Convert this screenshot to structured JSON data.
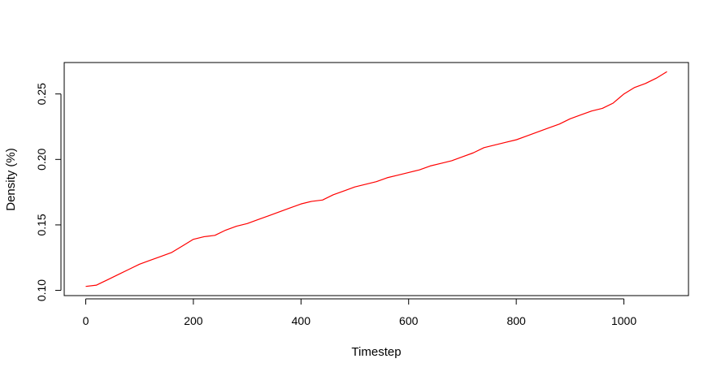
{
  "chart_data": {
    "type": "line",
    "title": "",
    "xlabel": "Timestep",
    "ylabel": "Density (%)",
    "xlim": [
      -40,
      1120
    ],
    "ylim": [
      0.096,
      0.274
    ],
    "x_ticks": [
      0,
      200,
      400,
      600,
      800,
      1000
    ],
    "x_tick_labels": [
      "0",
      "200",
      "400",
      "600",
      "800",
      "1000"
    ],
    "y_ticks": [
      0.1,
      0.15,
      0.2,
      0.25
    ],
    "y_tick_labels": [
      "0.10",
      "0.15",
      "0.20",
      "0.25"
    ],
    "grid": false,
    "legend": "none",
    "colors": {
      "line": "#ff0000",
      "axes": "#000000",
      "background": "#ffffff"
    },
    "series": [
      {
        "x": [
          0,
          20,
          40,
          60,
          80,
          100,
          120,
          140,
          160,
          180,
          200,
          220,
          240,
          260,
          280,
          300,
          320,
          340,
          360,
          380,
          400,
          420,
          440,
          460,
          480,
          500,
          520,
          540,
          560,
          580,
          600,
          620,
          640,
          660,
          680,
          700,
          720,
          740,
          760,
          780,
          800,
          820,
          840,
          860,
          880,
          900,
          920,
          940,
          960,
          980,
          1000,
          1020,
          1040,
          1060,
          1080
        ],
        "values": [
          0.103,
          0.104,
          0.108,
          0.112,
          0.116,
          0.12,
          0.123,
          0.126,
          0.129,
          0.134,
          0.139,
          0.141,
          0.142,
          0.146,
          0.149,
          0.151,
          0.154,
          0.157,
          0.16,
          0.163,
          0.166,
          0.168,
          0.169,
          0.173,
          0.176,
          0.179,
          0.181,
          0.183,
          0.186,
          0.188,
          0.19,
          0.192,
          0.195,
          0.197,
          0.199,
          0.202,
          0.205,
          0.209,
          0.211,
          0.213,
          0.215,
          0.218,
          0.221,
          0.224,
          0.227,
          0.231,
          0.234,
          0.237,
          0.239,
          0.243,
          0.25,
          0.255,
          0.258,
          0.262,
          0.267
        ]
      }
    ]
  }
}
